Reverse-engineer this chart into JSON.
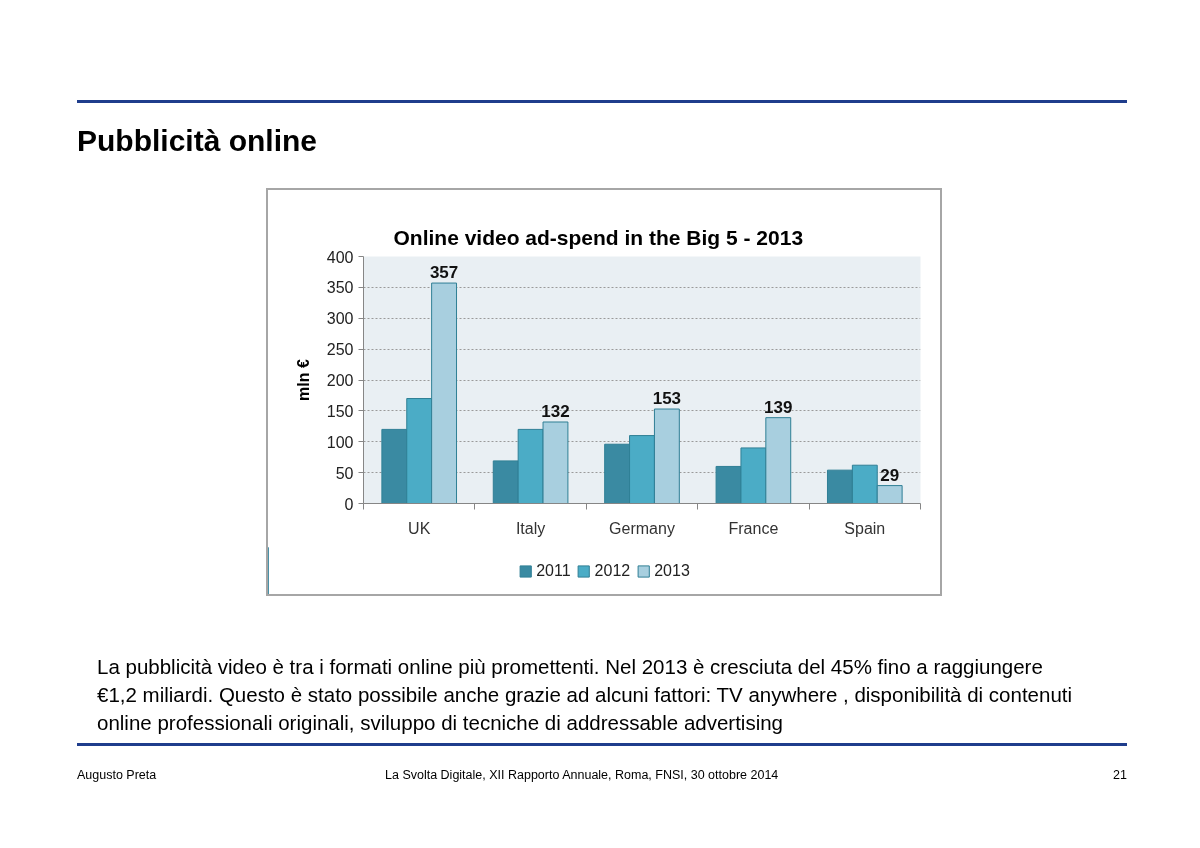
{
  "chart_data": {
    "type": "bar",
    "title": "Online video ad-spend in the Big 5 - 2013",
    "ylabel": "mln €",
    "categories": [
      "UK",
      "Italy",
      "Germany",
      "France",
      "Spain"
    ],
    "series": [
      {
        "name": "2011",
        "color": "#3a8aa2",
        "values": [
          120,
          69,
          96,
          60,
          54
        ]
      },
      {
        "name": "2012",
        "color": "#4bacc6",
        "values": [
          170,
          120,
          110,
          90,
          62
        ]
      },
      {
        "name": "2013",
        "color": "#a8cfdf",
        "values": [
          357,
          132,
          153,
          139,
          29
        ],
        "value_labels": [
          "357",
          "132",
          "153",
          "139",
          "29"
        ]
      }
    ],
    "ylim": [
      0,
      400
    ],
    "yticks": [
      0,
      50,
      100,
      150,
      200,
      250,
      300,
      350,
      400
    ],
    "grid": "y",
    "legend": "bottom",
    "annotations": [
      "Pubblicità online",
      "La pubblicità video è tra i formati online più promettenti. Nel 2013 è cresciuta del 45% fino a raggiungere €1,2 miliardi. Questo è stato possibile anche grazie ad alcuni fattori: TV anywhere , disponibilità di contenuti online professionali originali, sviluppo di tecniche di addressable advertising",
      "Augusto Preta",
      "La Svolta Digitale, XII Rapporto Annuale, Roma, FNSI, 30 ottobre 2014",
      "21"
    ]
  }
}
